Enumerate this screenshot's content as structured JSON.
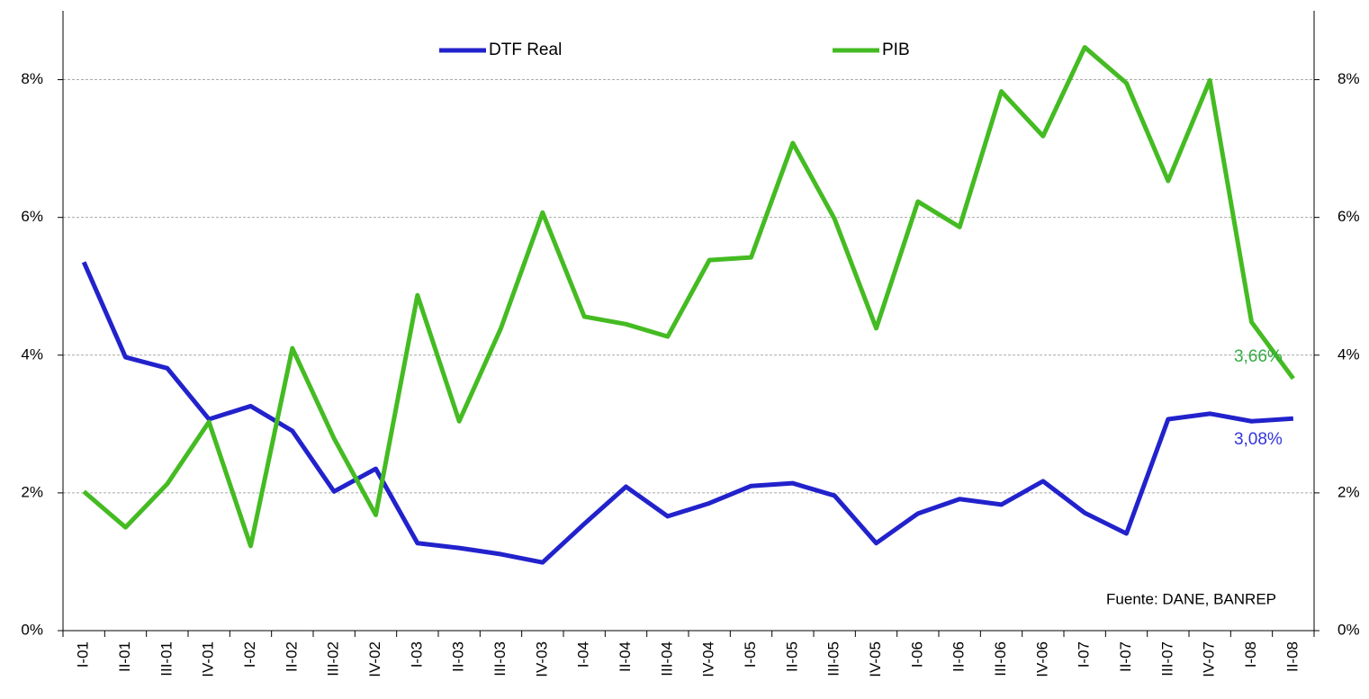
{
  "chart_data": {
    "type": "line",
    "categories": [
      "I-01",
      "II-01",
      "III-01",
      "IV-01",
      "I-02",
      "II-02",
      "III-02",
      "IV-02",
      "I-03",
      "II-03",
      "III-03",
      "IV-03",
      "I-04",
      "II-04",
      "III-04",
      "IV-04",
      "I-05",
      "II-05",
      "III-05",
      "IV-05",
      "I-06",
      "II-06",
      "III-06",
      "IV-06",
      "I-07",
      "II-07",
      "III-07",
      "IV-07",
      "I-08",
      "II-08"
    ],
    "series": [
      {
        "name": "DTF Real",
        "color": "#2222cc",
        "values": [
          5.35,
          3.97,
          3.81,
          3.07,
          3.26,
          2.9,
          2.02,
          2.35,
          1.27,
          1.2,
          1.11,
          0.99,
          1.55,
          2.09,
          1.66,
          1.85,
          2.1,
          2.14,
          1.96,
          1.27,
          1.7,
          1.91,
          1.83,
          2.17,
          1.71,
          1.41,
          3.07,
          3.15,
          3.04,
          3.08
        ],
        "value_labels": [
          null,
          null,
          null,
          null,
          null,
          null,
          null,
          null,
          null,
          null,
          null,
          null,
          null,
          null,
          null,
          null,
          null,
          null,
          null,
          null,
          null,
          null,
          null,
          null,
          null,
          null,
          null,
          null,
          null,
          "3,08%"
        ],
        "label_color": "#3333dd"
      },
      {
        "name": "PIB",
        "color": "#44bb22",
        "values": [
          2.02,
          1.5,
          2.13,
          3.03,
          1.23,
          4.1,
          2.79,
          1.68,
          4.87,
          3.04,
          4.39,
          6.07,
          4.56,
          4.45,
          4.27,
          5.38,
          5.42,
          7.08,
          5.98,
          4.39,
          6.23,
          5.86,
          7.83,
          7.18,
          8.47,
          7.95,
          6.53,
          7.99,
          4.48,
          3.66
        ],
        "value_labels": [
          null,
          null,
          null,
          null,
          null,
          null,
          null,
          null,
          null,
          null,
          null,
          null,
          null,
          null,
          null,
          null,
          null,
          null,
          null,
          null,
          null,
          null,
          null,
          null,
          null,
          null,
          null,
          null,
          null,
          "3,66%"
        ],
        "label_color": "#33aa44"
      }
    ],
    "ylim": [
      0,
      9
    ],
    "yticks": [
      {
        "value": 0,
        "label": "0%"
      },
      {
        "value": 2,
        "label": "2%"
      },
      {
        "value": 4,
        "label": "4%"
      },
      {
        "value": 6,
        "label": "6%"
      },
      {
        "value": 8,
        "label": "8%"
      }
    ],
    "y2lim": [
      0,
      9
    ],
    "y2ticks": [
      {
        "value": 0,
        "label": "0%"
      },
      {
        "value": 2,
        "label": "2%"
      },
      {
        "value": 4,
        "label": "4%"
      },
      {
        "value": 6,
        "label": "6%"
      },
      {
        "value": 8,
        "label": "8%"
      }
    ],
    "grid": true,
    "legend": "top",
    "annotations": [
      "Fuente: DANE, BANREP"
    ]
  }
}
